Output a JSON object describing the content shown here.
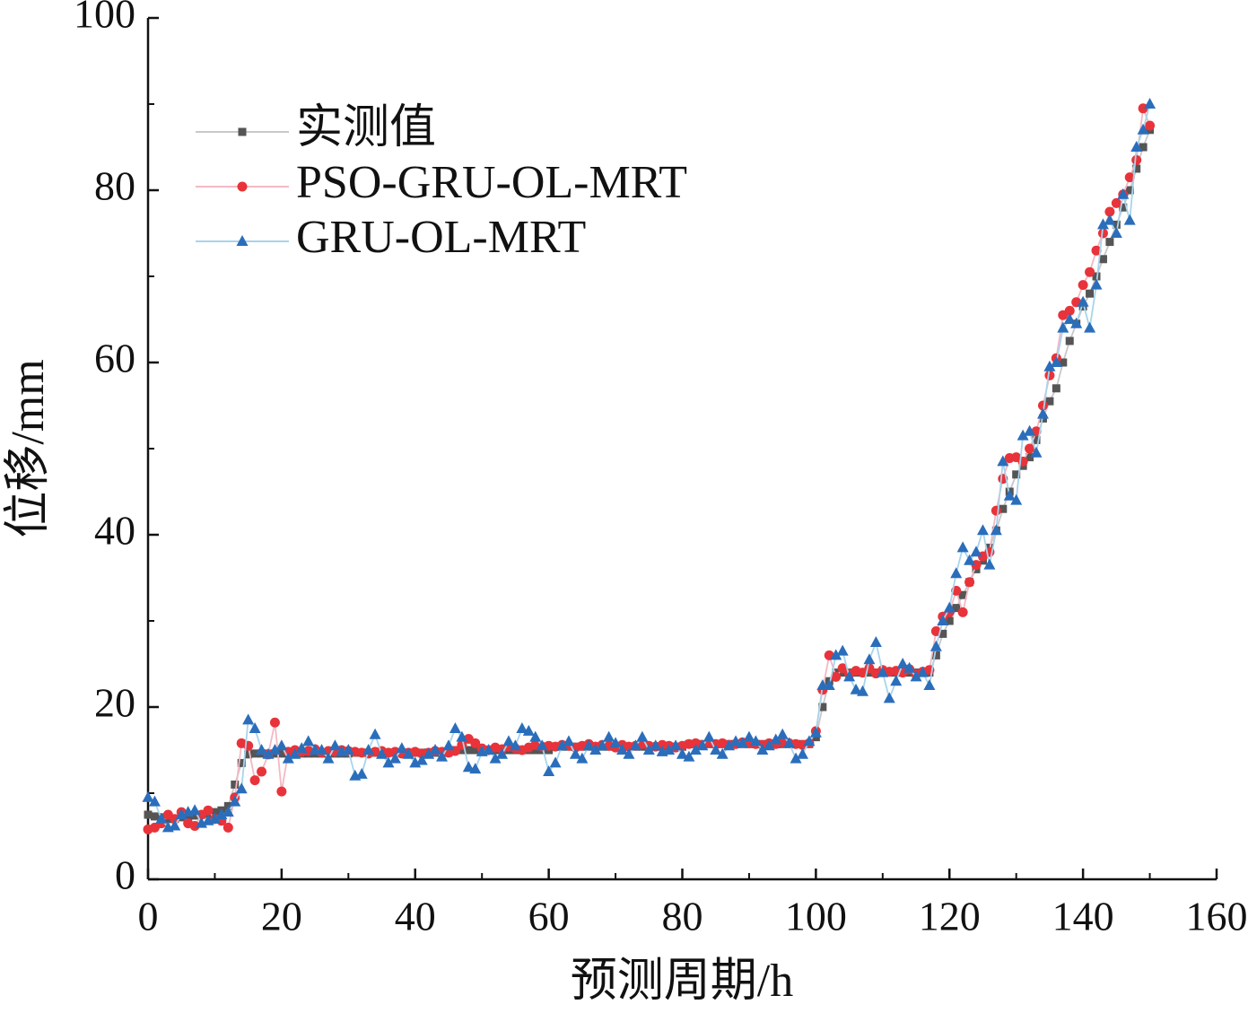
{
  "chart_data": {
    "type": "line",
    "xlabel": "预测周期/h",
    "ylabel": "位移/mm",
    "x": [
      0,
      1,
      2,
      3,
      4,
      5,
      6,
      7,
      8,
      9,
      10,
      11,
      12,
      13,
      14,
      15,
      16,
      17,
      18,
      19,
      20,
      21,
      22,
      23,
      24,
      25,
      26,
      27,
      28,
      29,
      30,
      31,
      32,
      33,
      34,
      35,
      36,
      37,
      38,
      39,
      40,
      41,
      42,
      43,
      44,
      45,
      46,
      47,
      48,
      49,
      50,
      51,
      52,
      53,
      54,
      55,
      56,
      57,
      58,
      59,
      60,
      61,
      62,
      63,
      64,
      65,
      66,
      67,
      68,
      69,
      70,
      71,
      72,
      73,
      74,
      75,
      76,
      77,
      78,
      79,
      80,
      81,
      82,
      83,
      84,
      85,
      86,
      87,
      88,
      89,
      90,
      91,
      92,
      93,
      94,
      95,
      96,
      97,
      98,
      99,
      100,
      101,
      102,
      103,
      104,
      105,
      106,
      107,
      108,
      109,
      110,
      111,
      112,
      113,
      114,
      115,
      116,
      117,
      118,
      119,
      120,
      121,
      122,
      123,
      124,
      125,
      126,
      127,
      128,
      129,
      130,
      131,
      132,
      133,
      134,
      135,
      136,
      137,
      138,
      139,
      140,
      141,
      142,
      143,
      144,
      145,
      146,
      147,
      148,
      149,
      150
    ],
    "series": [
      {
        "name": "实测值",
        "color": "#555555",
        "line_color": "#c8c8cc",
        "marker": "square",
        "values": [
          7.5,
          7.3,
          7.2,
          7.0,
          7.0,
          7.2,
          7.3,
          7.4,
          7.5,
          7.6,
          7.8,
          8.0,
          8.5,
          11,
          13.5,
          14.5,
          14.6,
          14.6,
          14.6,
          14.6,
          14.6,
          14.6,
          14.6,
          14.6,
          14.6,
          14.6,
          14.6,
          14.6,
          14.6,
          14.6,
          14.6,
          14.7,
          14.7,
          14.7,
          14.7,
          14.7,
          14.7,
          14.7,
          14.7,
          14.7,
          14.7,
          14.7,
          14.7,
          14.7,
          14.7,
          14.7,
          15.0,
          15.0,
          15.0,
          15.0,
          15.0,
          15.0,
          15.0,
          15.0,
          15.0,
          15.0,
          15.0,
          15.0,
          15.0,
          15.0,
          15.0,
          15.4,
          15.4,
          15.4,
          15.4,
          15.4,
          15.4,
          15.4,
          15.4,
          15.4,
          15.4,
          15.4,
          15.4,
          15.4,
          15.4,
          15.4,
          15.4,
          15.4,
          15.4,
          15.4,
          15.4,
          15.7,
          15.7,
          15.7,
          15.7,
          15.7,
          15.7,
          15.7,
          15.7,
          15.7,
          15.7,
          15.7,
          15.7,
          15.7,
          15.7,
          15.7,
          15.7,
          15.7,
          15.7,
          15.7,
          16.5,
          20,
          23,
          24,
          24,
          24,
          24,
          24,
          24,
          24,
          24,
          24,
          24,
          24,
          24,
          24,
          24,
          24,
          26,
          28.5,
          30,
          31.5,
          33,
          34.5,
          36,
          37,
          38.5,
          40.5,
          43,
          45,
          47,
          48,
          49,
          51,
          53.5,
          55.5,
          57,
          60,
          62.5,
          64.5,
          66.5,
          68,
          70,
          72,
          74,
          76,
          78,
          80,
          82.5,
          85,
          87
        ]
      },
      {
        "name": "PSO-GRU-OL-MRT",
        "color": "#e8333a",
        "line_color": "#f4b8c4",
        "marker": "circle",
        "values": [
          5.8,
          6.0,
          6.5,
          7.5,
          7.0,
          7.8,
          6.5,
          6.2,
          7.5,
          8.0,
          7.0,
          6.8,
          6.0,
          9.5,
          15.8,
          15.5,
          11.5,
          12.5,
          14.5,
          18.2,
          10.2,
          14.8,
          15.0,
          14.8,
          14.9,
          15.1,
          14.7,
          14.9,
          14.8,
          15.0,
          14.9,
          14.8,
          14.7,
          14.6,
          14.8,
          14.9,
          14.7,
          14.8,
          14.6,
          14.7,
          14.8,
          14.6,
          14.7,
          14.9,
          14.8,
          14.7,
          14.9,
          15.6,
          16.3,
          15.8,
          15.2,
          15.0,
          15.3,
          15.1,
          15.4,
          15.2,
          15.0,
          15.3,
          15.6,
          15.4,
          15.5,
          15.4,
          15.6,
          15.5,
          15.3,
          15.5,
          15.7,
          15.4,
          15.6,
          15.5,
          15.3,
          15.6,
          15.4,
          15.5,
          15.7,
          15.5,
          15.4,
          15.6,
          15.5,
          15.3,
          15.5,
          15.7,
          15.8,
          15.6,
          15.9,
          15.7,
          15.8,
          15.6,
          15.7,
          15.9,
          15.8,
          15.7,
          15.6,
          15.8,
          15.7,
          15.9,
          15.8,
          15.7,
          15.6,
          15.8,
          17.2,
          22.0,
          26.0,
          23.5,
          24.5,
          23.8,
          24.2,
          24.0,
          24.5,
          23.9,
          24.3,
          24.1,
          24.2,
          24.0,
          24.4,
          23.8,
          24.1,
          24.3,
          28.8,
          30.5,
          31.0,
          33.5,
          31.0,
          34.5,
          36.5,
          37.5,
          38.0,
          42.8,
          46.5,
          48.9,
          49.0,
          48.5,
          50.0,
          52.0,
          55.0,
          58.5,
          60.5,
          65.5,
          66.0,
          67.0,
          69.0,
          70.5,
          73.0,
          75.0,
          77.5,
          78.5,
          79.5,
          81.5,
          83.5,
          89.5,
          87.5
        ]
      },
      {
        "name": "GRU-OL-MRT",
        "color": "#2a6ebb",
        "line_color": "#a8d4ec",
        "marker": "triangle",
        "values": [
          9.5,
          9.0,
          7.0,
          6.0,
          6.2,
          7.5,
          7.8,
          8.0,
          6.5,
          6.8,
          7.0,
          7.5,
          7.8,
          9.0,
          10.5,
          18.5,
          17.5,
          15.0,
          14.5,
          15.0,
          15.5,
          14.0,
          14.5,
          15.2,
          16.0,
          15.0,
          15.0,
          14.0,
          15.5,
          14.8,
          15.0,
          12.0,
          12.2,
          15.0,
          16.8,
          14.5,
          13.5,
          14.0,
          15.2,
          14.5,
          13.5,
          13.8,
          14.5,
          15.0,
          14.2,
          15.5,
          17.5,
          16.5,
          13.0,
          12.8,
          14.8,
          15.0,
          14.0,
          14.5,
          16.0,
          15.5,
          17.5,
          17.2,
          16.5,
          15.5,
          12.5,
          13.5,
          15.5,
          16.0,
          14.5,
          14.0,
          15.5,
          15.0,
          15.5,
          16.5,
          15.8,
          15.0,
          14.5,
          15.5,
          16.5,
          15.0,
          15.5,
          14.8,
          15.0,
          15.5,
          14.5,
          14.2,
          15.0,
          15.5,
          16.5,
          15.0,
          14.5,
          15.5,
          16.0,
          15.8,
          16.5,
          16.0,
          15.0,
          15.5,
          16.2,
          16.8,
          15.8,
          14.0,
          14.5,
          16.0,
          17.0,
          22.5,
          22.5,
          26.0,
          26.5,
          23.5,
          22.0,
          21.8,
          25.5,
          27.5,
          24.0,
          21.0,
          23.0,
          25.0,
          24.5,
          23.5,
          24.0,
          22.5,
          27.0,
          30.0,
          31.5,
          35.5,
          38.5,
          37.0,
          38.0,
          40.5,
          36.5,
          40.5,
          48.5,
          44.5,
          44.0,
          51.5,
          52.0,
          49.5,
          54.0,
          59.5,
          60.0,
          64.0,
          65.0,
          64.5,
          67.0,
          64.0,
          69.0,
          76.0,
          76.5,
          75.0,
          79.5,
          76.5,
          85.0,
          87.0,
          90.0
        ]
      }
    ],
    "xlim": [
      0,
      160
    ],
    "xticks": [
      0,
      20,
      40,
      60,
      80,
      100,
      120,
      140,
      160
    ],
    "ylim": [
      0,
      100
    ],
    "yticks": [
      0,
      20,
      40,
      60,
      80,
      100
    ],
    "grid": false,
    "legend": "upper left"
  }
}
